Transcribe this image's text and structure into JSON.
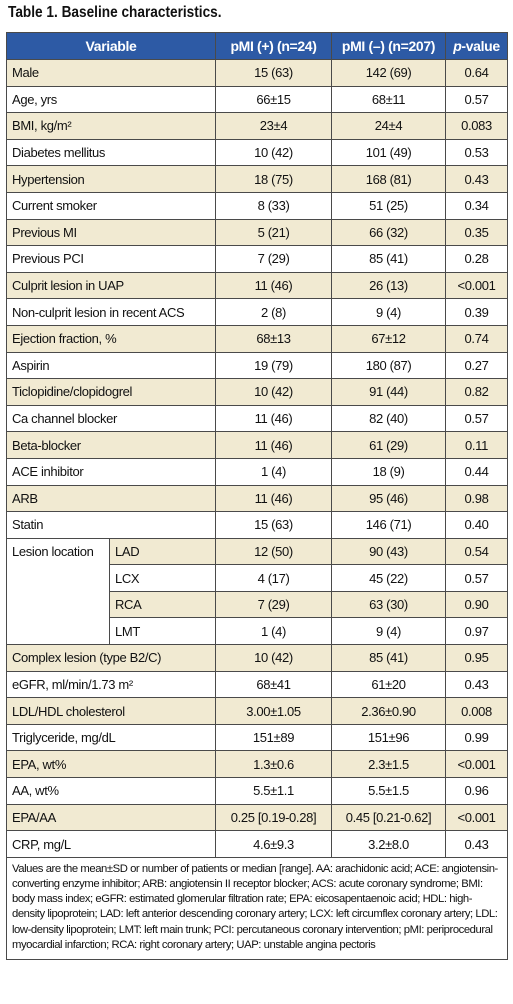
{
  "title": "Table 1. Baseline characteristics.",
  "headers": {
    "variable": "Variable",
    "group1": "pMI (+) (n=24)",
    "group2": "pMI (–) (n=207)",
    "pvalue_italic": "p",
    "pvalue_rest": "-value"
  },
  "rows": [
    {
      "label": "Male",
      "g1": "15 (63)",
      "g2": "142 (69)",
      "p": "0.64"
    },
    {
      "label": "Age, yrs",
      "g1": "66±15",
      "g2": "68±11",
      "p": "0.57"
    },
    {
      "label": "BMI, kg/m²",
      "g1": "23±4",
      "g2": "24±4",
      "p": "0.083"
    },
    {
      "label": "Diabetes mellitus",
      "g1": "10 (42)",
      "g2": "101 (49)",
      "p": "0.53"
    },
    {
      "label": "Hypertension",
      "g1": "18 (75)",
      "g2": "168 (81)",
      "p": "0.43"
    },
    {
      "label": "Current smoker",
      "g1": "8 (33)",
      "g2": "51 (25)",
      "p": "0.34"
    },
    {
      "label": "Previous MI",
      "g1": "5 (21)",
      "g2": "66 (32)",
      "p": "0.35"
    },
    {
      "label": "Previous PCI",
      "g1": "7 (29)",
      "g2": "85 (41)",
      "p": "0.28"
    },
    {
      "label": "Culprit lesion in UAP",
      "g1": "11 (46)",
      "g2": "26 (13)",
      "p": "<0.001"
    },
    {
      "label": "Non-culprit lesion in recent ACS",
      "g1": "2 (8)",
      "g2": "9 (4)",
      "p": "0.39"
    },
    {
      "label": "Ejection fraction, %",
      "g1": "68±13",
      "g2": "67±12",
      "p": "0.74"
    },
    {
      "label": "Aspirin",
      "g1": "19 (79)",
      "g2": "180 (87)",
      "p": "0.27"
    },
    {
      "label": "Ticlopidine/clopidogrel",
      "g1": "10 (42)",
      "g2": "91 (44)",
      "p": "0.82"
    },
    {
      "label": "Ca channel blocker",
      "g1": "11 (46)",
      "g2": "82 (40)",
      "p": "0.57"
    },
    {
      "label": "Beta-blocker",
      "g1": "11 (46)",
      "g2": "61 (29)",
      "p": "0.11"
    },
    {
      "label": "ACE inhibitor",
      "g1": "1 (4)",
      "g2": "18 (9)",
      "p": "0.44"
    },
    {
      "label": "ARB",
      "g1": "11 (46)",
      "g2": "95 (46)",
      "p": "0.98"
    },
    {
      "label": "Statin",
      "g1": "15 (63)",
      "g2": "146 (71)",
      "p": "0.40"
    }
  ],
  "lesion": {
    "label": "Lesion location",
    "subs": [
      {
        "label": "LAD",
        "g1": "12 (50)",
        "g2": "90 (43)",
        "p": "0.54"
      },
      {
        "label": "LCX",
        "g1": "4 (17)",
        "g2": "45 (22)",
        "p": "0.57"
      },
      {
        "label": "RCA",
        "g1": "7 (29)",
        "g2": "63 (30)",
        "p": "0.90"
      },
      {
        "label": "LMT",
        "g1": "1 (4)",
        "g2": "9 (4)",
        "p": "0.97"
      }
    ]
  },
  "rows2": [
    {
      "label": "Complex lesion (type B2/C)",
      "g1": "10 (42)",
      "g2": "85 (41)",
      "p": "0.95"
    },
    {
      "label": "eGFR, ml/min/1.73 m²",
      "g1": "68±41",
      "g2": "61±20",
      "p": "0.43"
    },
    {
      "label": "LDL/HDL cholesterol",
      "g1": "3.00±1.05",
      "g2": "2.36±0.90",
      "p": "0.008"
    },
    {
      "label": "Triglyceride, mg/dL",
      "g1": "151±89",
      "g2": "151±96",
      "p": "0.99"
    },
    {
      "label": "EPA, wt%",
      "g1": "1.3±0.6",
      "g2": "2.3±1.5",
      "p": "<0.001"
    },
    {
      "label": "AA, wt%",
      "g1": "5.5±1.1",
      "g2": "5.5±1.5",
      "p": "0.96"
    },
    {
      "label": "EPA/AA",
      "g1": "0.25 [0.19-0.28]",
      "g2": "0.45 [0.21-0.62]",
      "p": "<0.001"
    },
    {
      "label": "CRP, mg/L",
      "g1": "4.6±9.3",
      "g2": "3.2±8.0",
      "p": "0.43"
    }
  ],
  "footnote": "Values are the mean±SD or number of patients or median [range]. AA: arachidonic acid; ACE: angiotensin-converting enzyme inhibitor; ARB: angiotensin II receptor blocker; ACS: acute coronary syndrome; BMI: body mass index; eGFR: estimated glomerular filtration rate; EPA: eicosapentaenoic acid; HDL: high-density lipoprotein; LAD: left anterior descending coronary artery; LCX: left circumflex coronary artery; LDL: low-density lipoprotein; LMT: left main trunk; PCI: percutaneous coronary intervention; pMI: periprocedural myocardial infarction; RCA: right coronary artery; UAP: unstable angina pectoris",
  "colors": {
    "header_bg": "#2d5aa5",
    "shade_bg": "#f1ead2",
    "border": "#4a4a4a"
  }
}
